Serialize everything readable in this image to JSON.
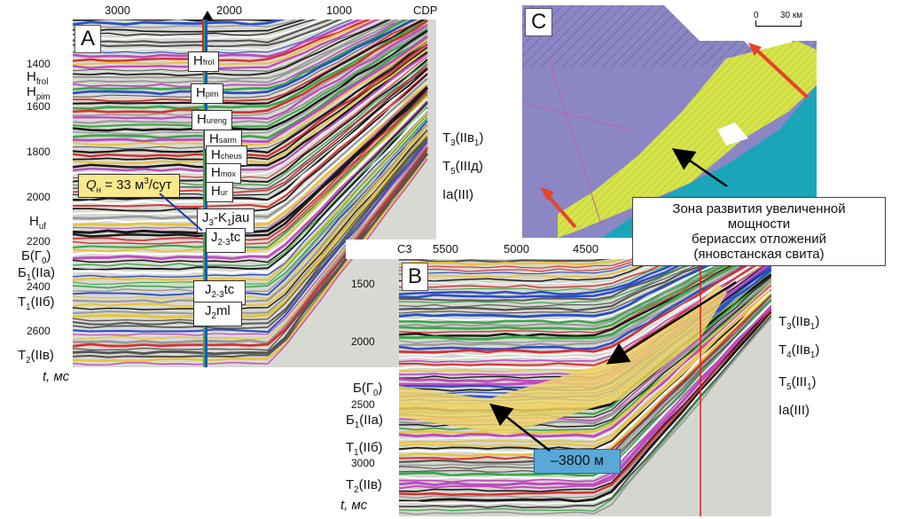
{
  "panel_a": {
    "letter": "A",
    "cdp_ticks": [
      "3000",
      "2000",
      "1000",
      "CDP"
    ],
    "time_ticks": [
      "1400",
      "1600",
      "1800",
      "2000",
      "2200",
      "2400",
      "2600"
    ],
    "time_axis_label": "t, мс",
    "left_horizons": {
      "h_frol": "H",
      "h_frol_sub": "frol",
      "h_pim": "H",
      "h_pim_sub": "pim",
      "h_uf": "H",
      "h_uf_sub": "uf",
      "b_g0": "Б(Г",
      "b_g0_sub": "0",
      "b_g0_end": ")",
      "b1": "Б",
      "b1_sub": "1",
      "b1_end": "(IIa)",
      "t1": "T",
      "t1_sub": "1",
      "t1_end": "(IIб)",
      "t2": "T",
      "t2_sub": "2",
      "t2_end": "(IIв)"
    },
    "right_horizons": {
      "t3": "T",
      "t3_sub": "3",
      "t3_end": "(IIв",
      "t3_sub2": "1",
      "t3_close": ")",
      "t5": "T",
      "t5_sub": "5",
      "t5_end": "(IIIд)",
      "ia": "Ia(III)"
    },
    "boxes": [
      {
        "main": "H",
        "sub": "frol"
      },
      {
        "main": "H",
        "sub": "pim"
      },
      {
        "main": "H",
        "sub": "ureng"
      },
      {
        "main": "H",
        "sub": "sarm"
      },
      {
        "main": "H",
        "sub": "cheus"
      },
      {
        "main": "H",
        "sub": "mox"
      },
      {
        "main": "H",
        "sub": "ur"
      }
    ],
    "jau": {
      "a": "J",
      "a_sub": "3",
      "b": "-K",
      "b_sub": "1",
      "c": "jau"
    },
    "tc1": {
      "a": "J",
      "a_sub": "2-3",
      "b": "tc"
    },
    "tc2": {
      "a": "J",
      "a_sub": "2-3",
      "b": "tc"
    },
    "ml": {
      "a": "J",
      "a_sub": "2",
      "b": "ml"
    },
    "flow": {
      "q": "Q",
      "q_sub": "н",
      "rest": " = 33 м",
      "sup": "3",
      "end": "/сут"
    }
  },
  "panel_b": {
    "letter": "B",
    "cdp_ticks": [
      "С3",
      "5500",
      "5000",
      "4500"
    ],
    "time_ticks": [
      "1500",
      "2000",
      "2500",
      "3000"
    ],
    "time_axis_label": "t, мс",
    "left_horizons": {
      "b_g0": "Б(Г",
      "b_g0_sub": "0",
      "b_g0_end": ")",
      "b1": "Б",
      "b1_sub": "1",
      "b1_end": "(IIa)",
      "t1": "T",
      "t1_sub": "1",
      "t1_end": "(IIб)",
      "t2": "T",
      "t2_sub": "2",
      "t2_end": "(IIв)"
    },
    "right_horizons": {
      "t3": "T",
      "t3_sub": "3",
      "t3_end": "(IIв",
      "t3_sub2": "1",
      "t3_close": ")",
      "t4": "T",
      "t4_sub": "4",
      "t4_end": "(IIв",
      "t4_sub2": "1",
      "t4_close": ")",
      "t5": "T",
      "t5_sub": "5",
      "t5_end": "(III",
      "t5_sub2": "1",
      "t5_close": ")",
      "ia": "Ia(III)"
    },
    "depth_label": "–3800 м"
  },
  "panel_c": {
    "letter": "C",
    "scale_zero": "0",
    "scale_km": "30 км"
  },
  "callout": {
    "line1": "Зона развития увеличенной",
    "line2": "мощности",
    "line3": "бериассих отложений",
    "line4": "(яновстанская свита)"
  },
  "colors": {
    "map_purple": "#8a87c4",
    "map_yellow": "#d6e34a",
    "map_cyan": "#1aa6b8",
    "arrow_red": "#e8432a",
    "callout_blue": "#5aa8d8",
    "flow_yellow": "#f9e98c"
  }
}
